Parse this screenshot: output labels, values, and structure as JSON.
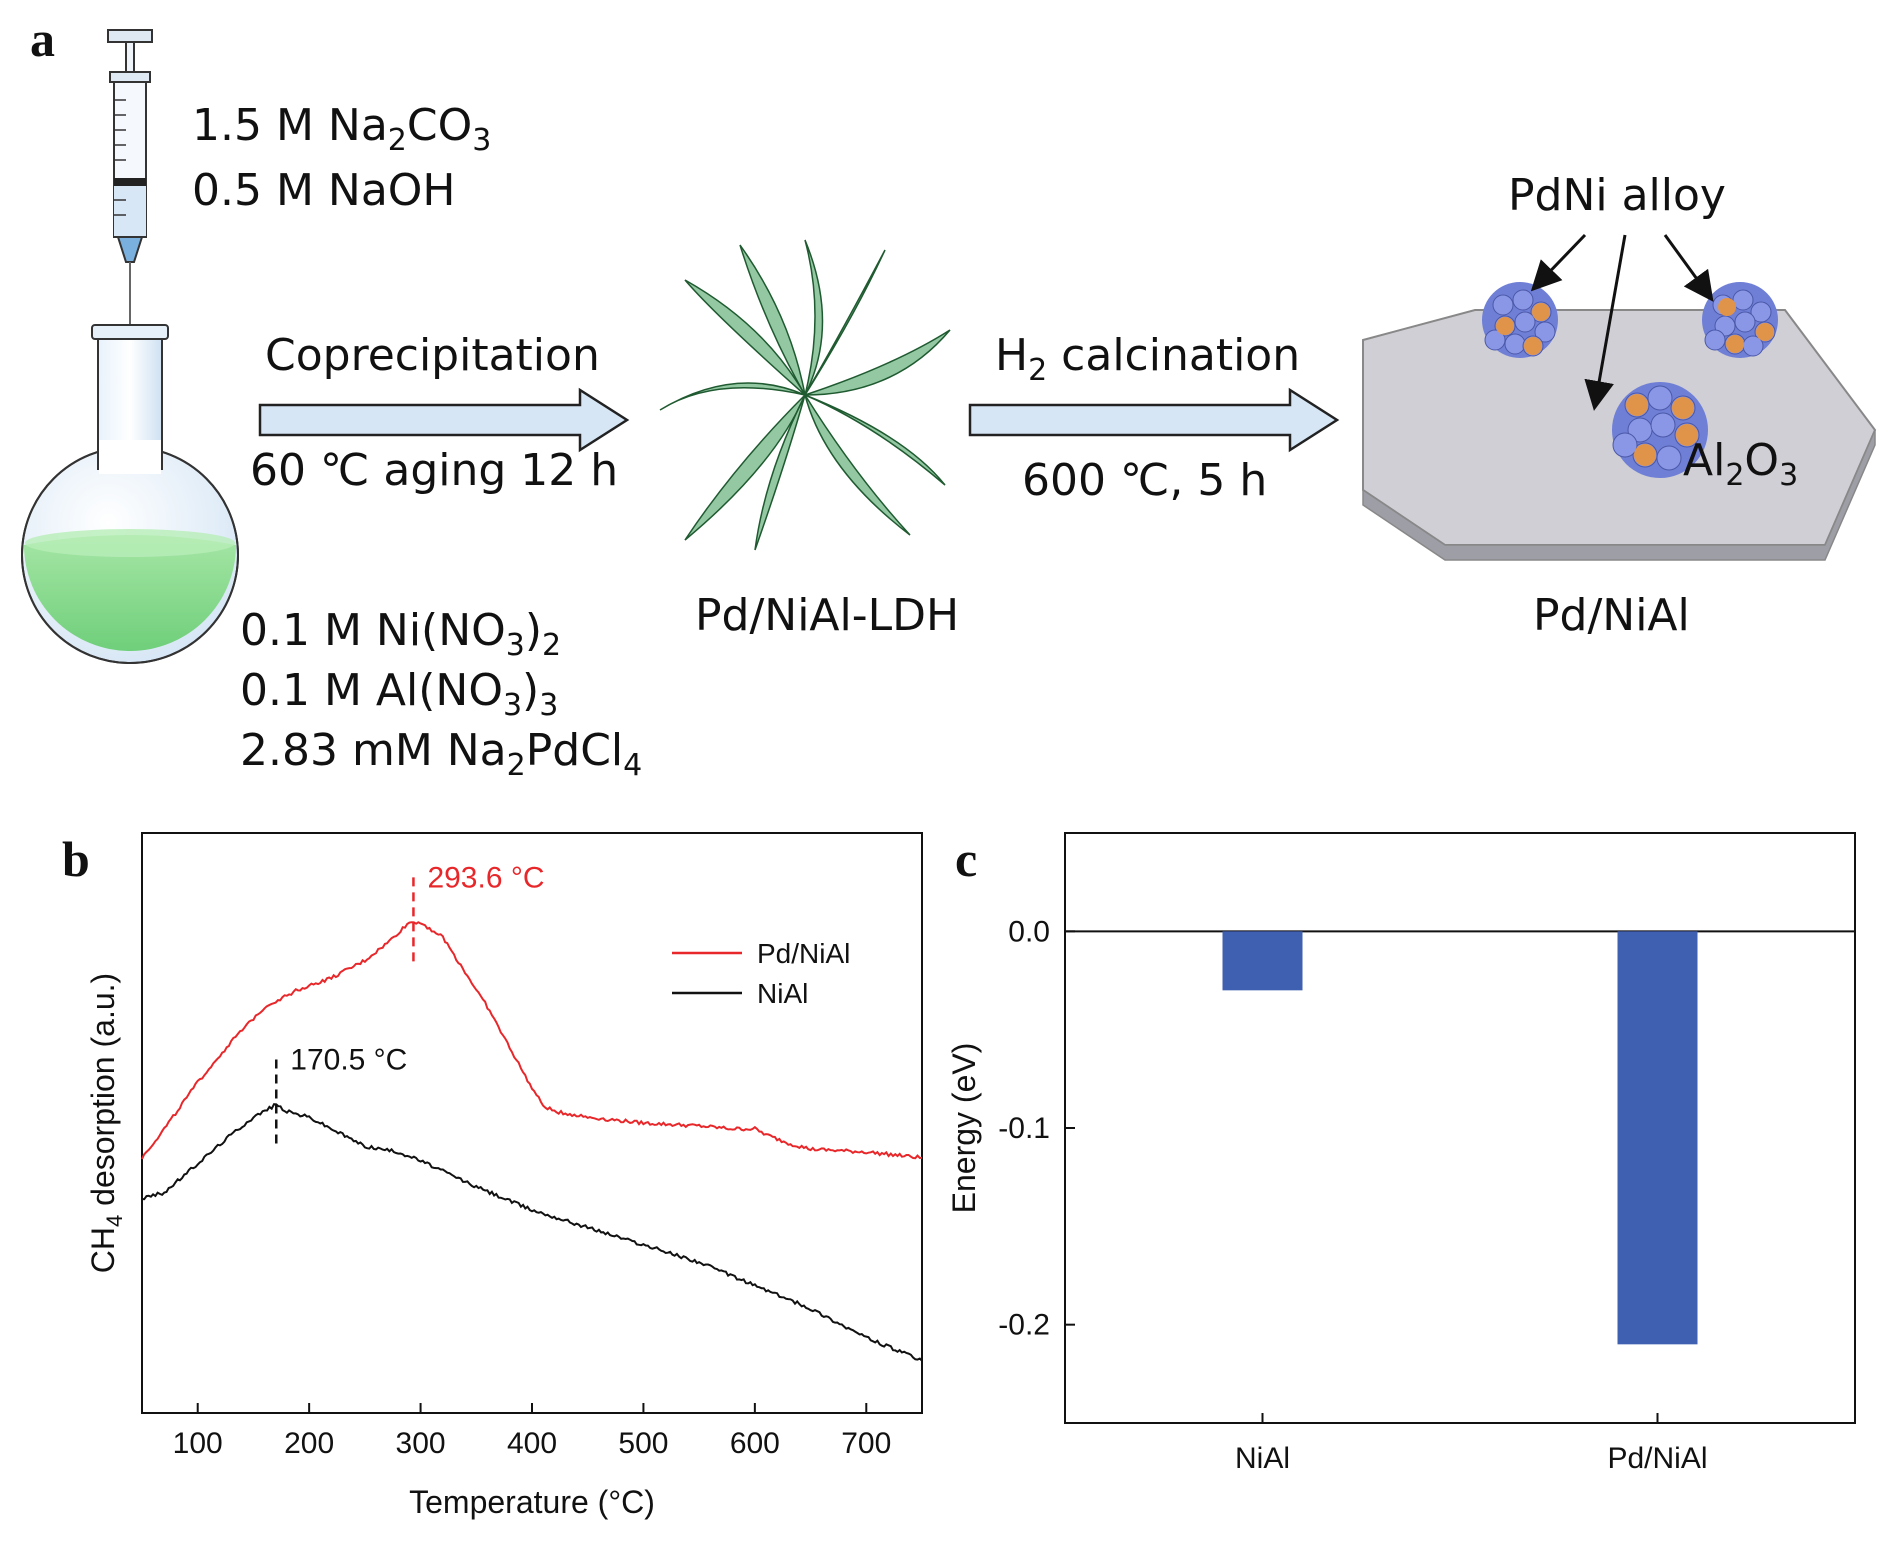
{
  "panel_a": {
    "letter": "a",
    "syringe_reagents": {
      "line1_prefix": "1.5 M Na",
      "line1_sub1": "2",
      "line1_mid": "CO",
      "line1_sub2": "3",
      "line2": "0.5 M NaOH"
    },
    "flask_reagents": {
      "line1_prefix": "0.1 M Ni(NO",
      "line1_sub1": "3",
      "line1_mid": ")",
      "line1_sub2": "2",
      "line2_prefix": "0.1 M Al(NO",
      "line2_sub1": "3",
      "line2_mid": ")",
      "line2_sub2": "3",
      "line3_prefix": "2.83 mM Na",
      "line3_sub1": "2",
      "line3_mid": "PdCl",
      "line3_sub2": "4"
    },
    "step1": {
      "above": "Coprecipitation",
      "below": "60 ℃ aging 12 h"
    },
    "intermediate_label": "Pd/NiAl-LDH",
    "step2": {
      "above_prefix": "H",
      "above_sub": "2",
      "above_suffix": " calcination",
      "below": "600 ℃, 5 h"
    },
    "alloy_label": "PdNi alloy",
    "support_prefix": "Al",
    "support_sub1": "2",
    "support_mid": "O",
    "support_sub2": "3",
    "product_label": "Pd/NiAl",
    "colors": {
      "arrow_fill": "#d6e6f5",
      "arrow_stroke": "#222222",
      "solution": "#8fd98f",
      "leaf": "#2f8a4a",
      "particle": "#6f7fd6",
      "pd_atom": "#e0944a",
      "plate": "#c9c9cf"
    }
  },
  "panel_b": {
    "letter": "b",
    "chart_data": {
      "type": "line",
      "xlabel": "Temperature (°C)",
      "ylabel_prefix": "CH",
      "ylabel_sub": "4",
      "ylabel_suffix": " desorption (a.u.)",
      "xlim": [
        50,
        750
      ],
      "ylim": [
        0,
        1
      ],
      "xticks": [
        100,
        200,
        300,
        400,
        500,
        600,
        700
      ],
      "series": [
        {
          "name": "Pd/NiAl",
          "color": "#e8272a",
          "x": [
            50,
            70,
            100,
            130,
            160,
            190,
            220,
            250,
            270,
            290,
            300,
            320,
            340,
            360,
            380,
            400,
            410,
            420,
            450,
            500,
            550,
            580,
            600,
            610,
            630,
            650,
            700,
            750
          ],
          "y": [
            0.44,
            0.49,
            0.57,
            0.64,
            0.7,
            0.73,
            0.75,
            0.78,
            0.81,
            0.846,
            0.846,
            0.82,
            0.76,
            0.7,
            0.63,
            0.56,
            0.53,
            0.52,
            0.51,
            0.5,
            0.495,
            0.49,
            0.49,
            0.48,
            0.465,
            0.455,
            0.45,
            0.44
          ]
        },
        {
          "name": "NiAl",
          "color": "#111111",
          "x": [
            50,
            70,
            100,
            130,
            150,
            170.5,
            180,
            200,
            220,
            250,
            280,
            300,
            350,
            400,
            450,
            500,
            550,
            600,
            650,
            700,
            750
          ],
          "y": [
            0.37,
            0.38,
            0.43,
            0.48,
            0.51,
            0.532,
            0.52,
            0.51,
            0.49,
            0.46,
            0.45,
            0.435,
            0.39,
            0.35,
            0.32,
            0.29,
            0.26,
            0.22,
            0.18,
            0.13,
            0.09
          ]
        }
      ],
      "annotations": [
        {
          "text": "293.6 °C",
          "x": 293.6,
          "series": "Pd/NiAl",
          "color": "#e8272a"
        },
        {
          "text": "170.5 °C",
          "x": 170.5,
          "series": "NiAl",
          "color": "#111111"
        }
      ],
      "legend": "top-right"
    }
  },
  "panel_c": {
    "letter": "c",
    "chart_data": {
      "type": "bar",
      "categories": [
        "NiAl",
        "Pd/NiAl"
      ],
      "values": [
        -0.03,
        -0.21
      ],
      "ylabel": "Energy (eV)",
      "ylim": [
        -0.25,
        0.05
      ],
      "yticks": [
        0.0,
        -0.1,
        -0.2
      ],
      "ytick_labels": [
        "0.0",
        "-0.1",
        "-0.2"
      ],
      "bar_color": "#3f5fb0",
      "zero_line": true
    }
  }
}
